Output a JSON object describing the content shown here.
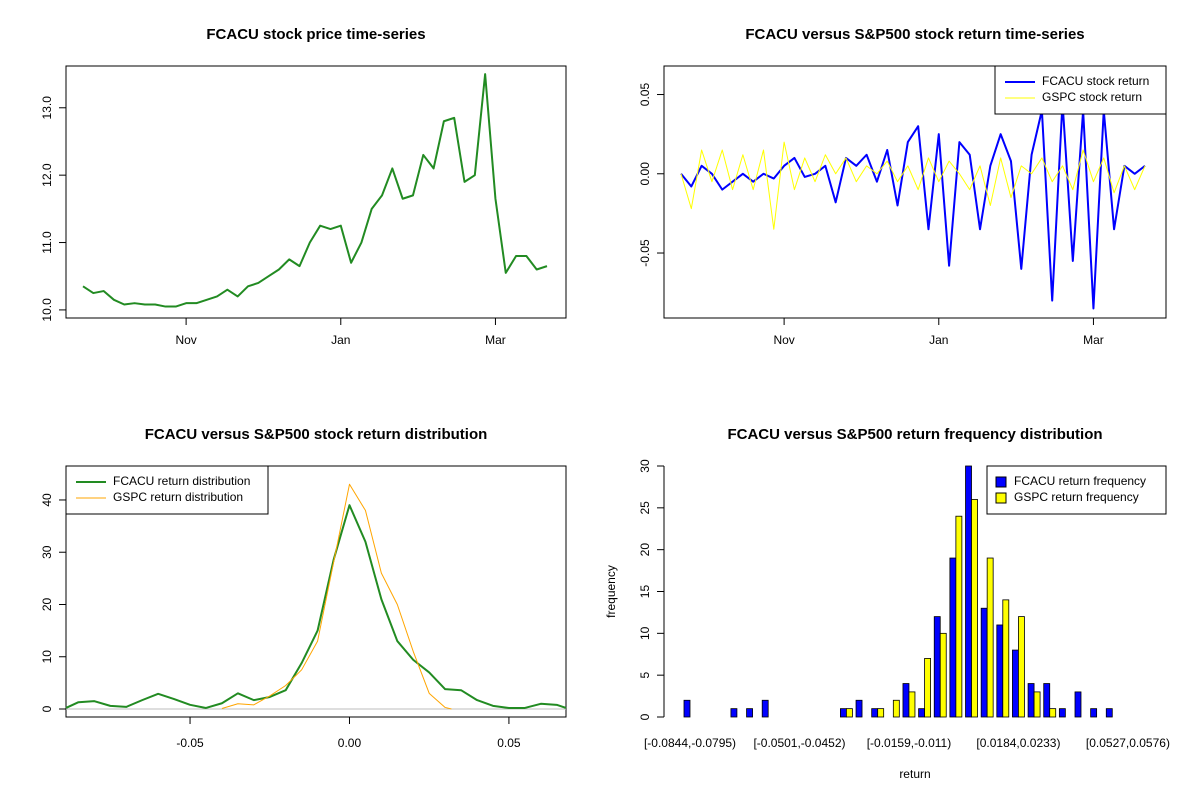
{
  "chart_data": [
    {
      "type": "line",
      "title": "FCACU stock price time-series",
      "categories": [
        null,
        null,
        null,
        null,
        null,
        null,
        null,
        null,
        null,
        null,
        "Nov",
        null,
        null,
        null,
        null,
        null,
        null,
        null,
        null,
        null,
        null,
        null,
        null,
        null,
        null,
        "Jan",
        null,
        null,
        null,
        null,
        null,
        null,
        null,
        null,
        null,
        null,
        null,
        null,
        null,
        null,
        "Mar",
        null,
        null,
        null,
        null,
        null
      ],
      "series": [
        {
          "name": "FCACU stock price",
          "color": "#228b22",
          "linewidth": 2,
          "values": [
            10.35,
            10.25,
            10.28,
            10.15,
            10.08,
            10.1,
            10.08,
            10.08,
            10.05,
            10.05,
            10.1,
            10.1,
            10.15,
            10.2,
            10.3,
            10.2,
            10.35,
            10.4,
            10.5,
            10.6,
            10.75,
            10.65,
            11.0,
            11.25,
            11.2,
            11.25,
            10.7,
            11.0,
            11.5,
            11.7,
            12.1,
            11.65,
            11.7,
            12.3,
            12.1,
            12.8,
            12.85,
            11.9,
            12.0,
            13.5,
            11.65,
            10.55,
            10.8,
            10.8,
            10.6,
            10.65
          ]
        }
      ],
      "ylim": [
        9.88,
        13.62
      ],
      "yticks": [
        {
          "value": 10,
          "label": "10.0"
        },
        {
          "value": 11,
          "label": "11.0"
        },
        {
          "value": 12,
          "label": "12.0"
        },
        {
          "value": 13,
          "label": "13.0"
        }
      ]
    },
    {
      "type": "line",
      "title": "FCACU versus S&P500 stock return time-series",
      "categories": [
        null,
        null,
        null,
        null,
        null,
        null,
        null,
        null,
        null,
        null,
        "Nov",
        null,
        null,
        null,
        null,
        null,
        null,
        null,
        null,
        null,
        null,
        null,
        null,
        null,
        null,
        "Jan",
        null,
        null,
        null,
        null,
        null,
        null,
        null,
        null,
        null,
        null,
        null,
        null,
        null,
        null,
        "Mar",
        null,
        null,
        null,
        null,
        null
      ],
      "series": [
        {
          "name": "FCACU stock return",
          "color": "#0000ff",
          "linewidth": 2,
          "values": [
            0,
            -0.008,
            0.005,
            0,
            -0.01,
            -0.005,
            0,
            -0.005,
            0,
            -0.003,
            0.005,
            0.01,
            -0.002,
            0,
            0.005,
            -0.018,
            0.01,
            0.005,
            0.012,
            -0.005,
            0.015,
            -0.02,
            0.02,
            0.03,
            -0.035,
            0.025,
            -0.058,
            0.02,
            0.012,
            -0.035,
            0.005,
            0.025,
            0.008,
            -0.06,
            0.012,
            0.04,
            -0.08,
            0.045,
            -0.055,
            0.04,
            -0.085,
            0.04,
            -0.035,
            0.005,
            0,
            0.005
          ]
        },
        {
          "name": "GSPC stock return",
          "color": "#ffff00",
          "linewidth": 1,
          "values": [
            0,
            -0.022,
            0.015,
            -0.005,
            0.015,
            -0.01,
            0.012,
            -0.01,
            0.015,
            -0.035,
            0.02,
            -0.01,
            0.01,
            -0.005,
            0.012,
            0,
            0.01,
            -0.005,
            0.005,
            0,
            0.008,
            -0.005,
            0.005,
            -0.01,
            0.01,
            -0.005,
            0.008,
            0,
            -0.01,
            0.005,
            -0.02,
            0.01,
            -0.015,
            0.005,
            0,
            0.01,
            -0.005,
            0.005,
            -0.01,
            0.015,
            -0.005,
            0.01,
            -0.012,
            0.005,
            -0.01,
            0.005
          ]
        }
      ],
      "ylim": [
        -0.091,
        0.068
      ],
      "yticks": [
        -0.05,
        {
          "value": 0,
          "label": "0.00"
        },
        0.05
      ],
      "legend": "topright"
    },
    {
      "type": "line",
      "title": "FCACU versus S&P500 stock return distribution",
      "series": [
        {
          "name": "FCACU return distribution",
          "color": "#228b22",
          "linewidth": 2,
          "x": [
            -0.0889,
            -0.085,
            -0.08,
            -0.075,
            -0.07,
            -0.065,
            -0.06,
            -0.055,
            -0.05,
            -0.045,
            -0.04,
            -0.035,
            -0.03,
            -0.025,
            -0.02,
            -0.015,
            -0.01,
            -0.005,
            0,
            0.005,
            0.01,
            0.015,
            0.02,
            0.025,
            0.03,
            0.035,
            0.04,
            0.045,
            0.05,
            0.055,
            0.06,
            0.065,
            0.0679
          ],
          "values": [
            0.2,
            1.3,
            1.5,
            0.6,
            0.4,
            1.7,
            2.9,
            1.9,
            0.8,
            0.2,
            1.1,
            3,
            1.7,
            2.3,
            3.6,
            8.8,
            15,
            28.5,
            39,
            32,
            21,
            13,
            9.4,
            7,
            3.8,
            3.6,
            1.7,
            0.6,
            0.2,
            0.2,
            1,
            0.8,
            0.2
          ]
        },
        {
          "name": "GSPC return distribution",
          "color": "#ffa500",
          "linewidth": 1,
          "x": [
            -0.04,
            -0.035,
            -0.03,
            -0.025,
            -0.02,
            -0.015,
            -0.01,
            -0.005,
            0,
            0.005,
            0.01,
            0.015,
            0.02,
            0.025,
            0.03,
            0.032
          ],
          "values": [
            0.1,
            1,
            0.8,
            2.5,
            4.5,
            7.5,
            13,
            28,
            43,
            38,
            26,
            20,
            11,
            3,
            0.3,
            0
          ]
        }
      ],
      "xlim": [
        -0.0889,
        0.0679
      ],
      "xticks": [
        -0.05,
        {
          "value": 0,
          "label": "0.00"
        },
        0.05
      ],
      "ylim": [
        -1.53,
        46.5
      ],
      "yticks": [
        0,
        10,
        20,
        30,
        40
      ],
      "legend": "topleft"
    },
    {
      "type": "bar",
      "title": "FCACU versus S&P500 return frequency distribution",
      "xlabel": "return",
      "ylabel": "frequency",
      "categories": [
        "[-0.0844,-0.0795)",
        null,
        null,
        null,
        null,
        null,
        null,
        "[-0.0501,-0.0452)",
        null,
        null,
        null,
        null,
        null,
        null,
        "[-0.0159,-0.011)",
        null,
        null,
        null,
        null,
        null,
        null,
        "[0.0184,0.0233)",
        null,
        null,
        null,
        null,
        null,
        null,
        "[0.0527,0.0576)",
        null
      ],
      "series": [
        {
          "name": "FCACU return frequency",
          "color": "#0000ff",
          "values": [
            2,
            0,
            0,
            1,
            1,
            2,
            0,
            0,
            0,
            0,
            1,
            2,
            1,
            0,
            4,
            1,
            12,
            19,
            30,
            13,
            11,
            8,
            4,
            4,
            1,
            3,
            1,
            1,
            0,
            0
          ]
        },
        {
          "name": "GSPC return frequency",
          "color": "#ffff00",
          "values": [
            0,
            0,
            0,
            0,
            0,
            0,
            0,
            0,
            0,
            0,
            1,
            0,
            1,
            2,
            3,
            7,
            10,
            24,
            26,
            19,
            14,
            12,
            3,
            1,
            0,
            0,
            0,
            0,
            0,
            0
          ]
        }
      ],
      "ylim": [
        0,
        30
      ],
      "yticks": [
        0,
        5,
        10,
        15,
        20,
        25,
        30
      ],
      "legend": "topright"
    }
  ]
}
